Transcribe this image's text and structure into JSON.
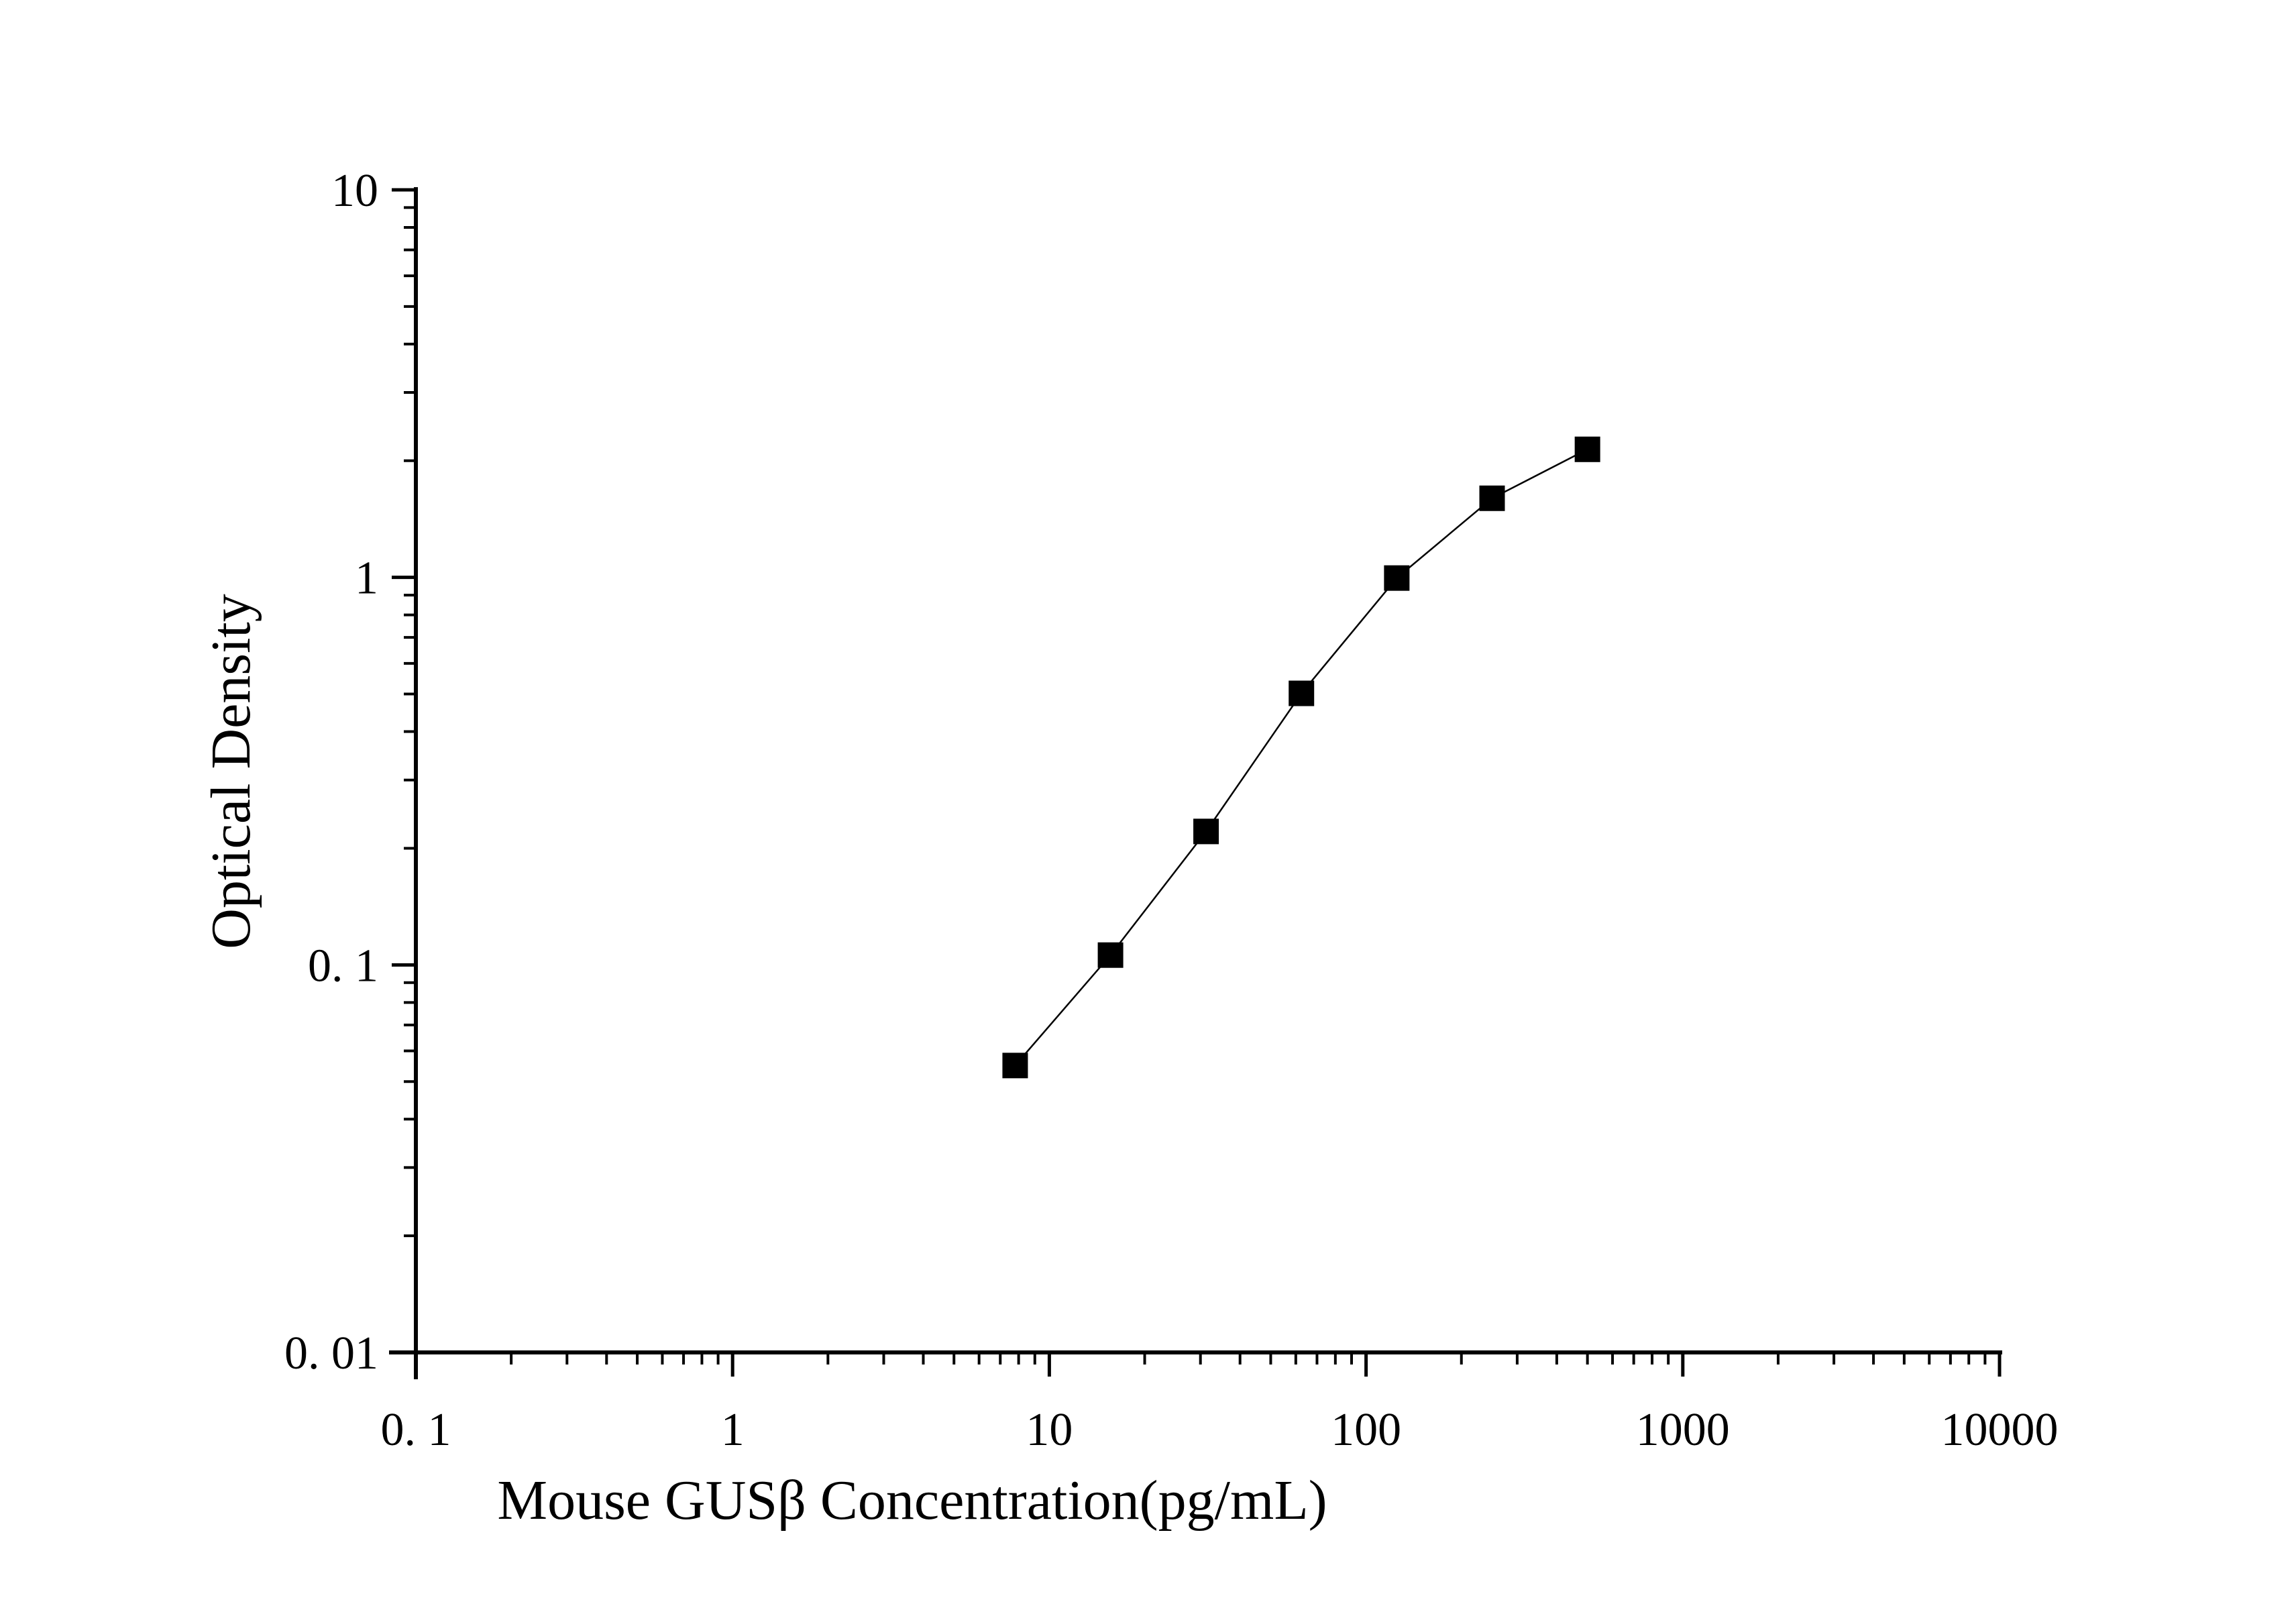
{
  "chart_data": {
    "type": "line",
    "title": "",
    "xlabel": "Mouse GUSβ Concentration(pg/mL)",
    "ylabel": "Optical Density",
    "x_scale": "log",
    "y_scale": "log",
    "xlim": [
      0.1,
      10000
    ],
    "ylim": [
      0.01,
      10
    ],
    "x_ticks": [
      "0. 1",
      "1",
      "10",
      "100",
      "1000",
      "10000"
    ],
    "y_ticks": [
      "0. 01",
      "0. 1",
      "1",
      "10"
    ],
    "grid": false,
    "marker": "square",
    "color": "#000000",
    "series": [
      {
        "x": [
          7.8,
          15.6,
          31.25,
          62.5,
          125,
          250,
          500
        ],
        "y": [
          0.055,
          0.106,
          0.221,
          0.502,
          0.996,
          1.6,
          2.14
        ]
      }
    ]
  }
}
